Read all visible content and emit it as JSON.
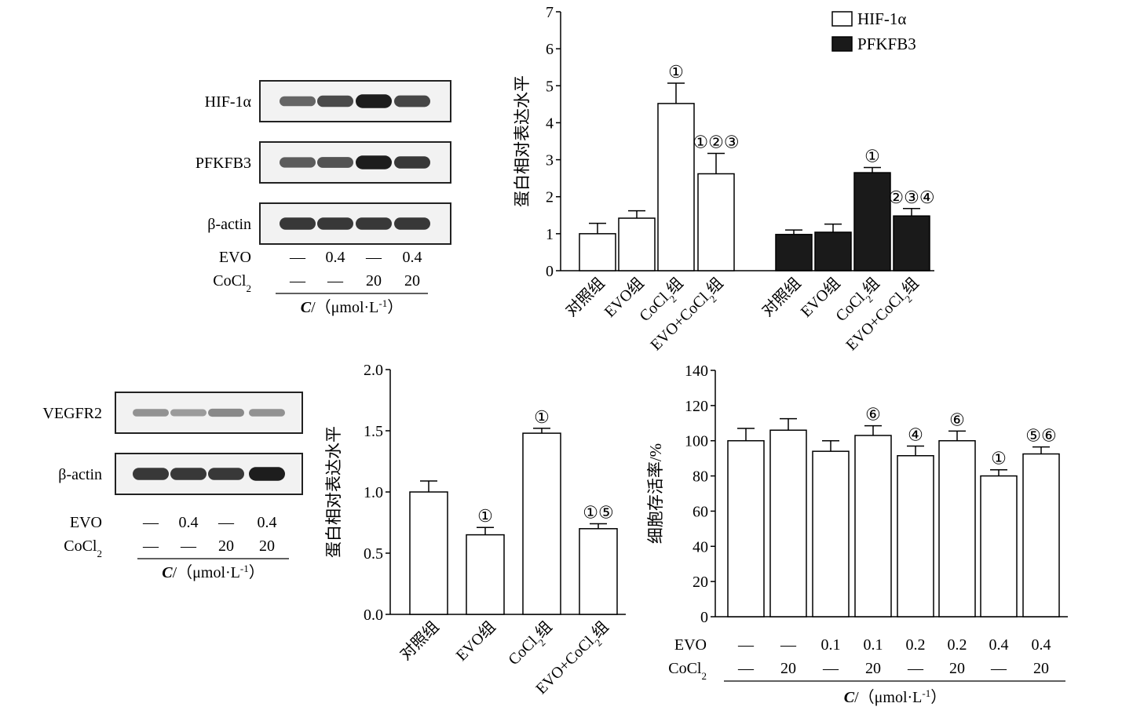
{
  "western_blot_top": {
    "rows": [
      {
        "label": "HIF-1α",
        "intensities": [
          0.55,
          0.7,
          0.95,
          0.72
        ]
      },
      {
        "label": "PFKFB3",
        "intensities": [
          0.6,
          0.65,
          0.95,
          0.8
        ]
      },
      {
        "label": "β-actin",
        "intensities": [
          0.8,
          0.8,
          0.8,
          0.8
        ]
      }
    ],
    "conditions": [
      {
        "label": "EVO",
        "values": [
          "—",
          "0.4",
          "—",
          "0.4"
        ]
      },
      {
        "label": "CoCl2",
        "values": [
          "—",
          "—",
          "20",
          "20"
        ]
      }
    ],
    "unit_label": "C/（μmol·L-1）"
  },
  "western_blot_bottom": {
    "rows": [
      {
        "label": "VEGFR2",
        "intensities": [
          0.3,
          0.25,
          0.35,
          0.3
        ]
      },
      {
        "label": "β-actin",
        "intensities": [
          0.8,
          0.8,
          0.8,
          0.95
        ]
      }
    ],
    "conditions": [
      {
        "label": "EVO",
        "values": [
          "—",
          "0.4",
          "—",
          "0.4"
        ]
      },
      {
        "label": "CoCl2",
        "values": [
          "—",
          "—",
          "20",
          "20"
        ]
      }
    ],
    "unit_label": "C/（μmol·L-1）"
  },
  "chart_data": [
    {
      "type": "bar",
      "ylabel": "蛋白相对表达水平",
      "ylim": [
        0,
        7
      ],
      "yticks": [
        0,
        1,
        2,
        3,
        4,
        5,
        6,
        7
      ],
      "legend": {
        "placement": "top-right"
      },
      "series": [
        {
          "name": "HIF-1α",
          "color": "#ffffff",
          "categories": [
            "对照组",
            "EVO组",
            "CoCl2组",
            "EVO+CoCl2组"
          ],
          "values": [
            1.0,
            1.42,
            4.52,
            2.62
          ],
          "errors": [
            0.28,
            0.2,
            0.55,
            0.55
          ],
          "annotations": [
            "",
            "",
            "①",
            "①②③"
          ]
        },
        {
          "name": "PFKFB3",
          "color": "#1a1a1a",
          "categories": [
            "对照组",
            "EVO组",
            "CoCl2组",
            "EVO+CoCl2组"
          ],
          "values": [
            0.98,
            1.04,
            2.65,
            1.48
          ],
          "errors": [
            0.12,
            0.22,
            0.14,
            0.2
          ],
          "annotations": [
            "",
            "",
            "①",
            "②③④"
          ]
        }
      ]
    },
    {
      "type": "bar",
      "ylabel": "蛋白相对表达水平",
      "ylim": [
        0,
        2.0
      ],
      "yticks": [
        "0.0",
        "0.5",
        "1.0",
        "1.5",
        "2.0"
      ],
      "categories": [
        "对照组",
        "EVO组",
        "CoCl2组",
        "EVO+CoCl2组"
      ],
      "values": [
        1.0,
        0.65,
        1.48,
        0.7
      ],
      "errors": [
        0.09,
        0.06,
        0.04,
        0.04
      ],
      "annotations": [
        "",
        "①",
        "①",
        "①⑤"
      ]
    },
    {
      "type": "bar",
      "ylabel": "细胞存活率/%",
      "ylim": [
        0,
        140
      ],
      "yticks": [
        0,
        20,
        40,
        60,
        80,
        100,
        120,
        140
      ],
      "values": [
        100,
        106,
        94,
        103,
        91.5,
        100,
        80,
        92.5
      ],
      "errors": [
        7,
        6.5,
        6,
        5.5,
        5.5,
        5.5,
        3.5,
        4
      ],
      "annotations": [
        "",
        "",
        "",
        "⑥",
        "④",
        "⑥",
        "①",
        "⑤⑥"
      ],
      "conditions": [
        {
          "label": "EVO",
          "values": [
            "—",
            "—",
            "0.1",
            "0.1",
            "0.2",
            "0.2",
            "0.4",
            "0.4"
          ]
        },
        {
          "label": "CoCl2",
          "values": [
            "—",
            "20",
            "—",
            "20",
            "—",
            "20",
            "—",
            "20"
          ]
        }
      ],
      "unit_label": "C/（μmol·L-1）"
    }
  ]
}
